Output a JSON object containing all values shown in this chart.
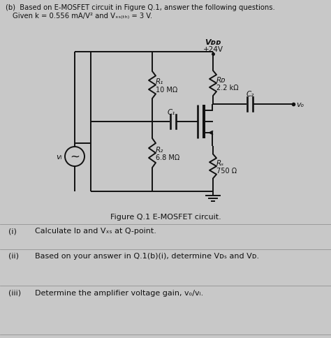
{
  "bg_color": "#c8c8c8",
  "title_line1": "(b)   Based on E-MOSFET circuit in Figure Q.1, answer the following questions.",
  "title_line2": "   Given k = 0.556 mA/V² and V₀ₛ₍ₜₕ₎ = 3 V.",
  "figure_caption": "Figure Q.1 E-MOSFET circuit.",
  "q1_num": "(i)",
  "q1_text": "Calculate Iᴅ and Vₓₛ at Q-point.",
  "q2_num": "(ii)",
  "q2_text": "Based on your answer in Q.1(b)(i), determine Vᴅₛ and Vᴅ.",
  "q3_num": "(iii)",
  "q3_text": "Determine the amplifier voltage gain, vₒ/vᵢ.",
  "text_color": "#111111",
  "vdd_label": "Vᴅᴅ",
  "vdd_value": "+24V",
  "r1_label": "R₁",
  "r1_value": "10 MΩ",
  "rd_label": "Rᴅ",
  "rd_value": "2.2 kΩ",
  "c1_label": "C₁",
  "c2_label": "C₂",
  "r2_label": "R₂",
  "r2_value": "6.8 MΩ",
  "rs_label": "Rₛ",
  "rs_value": "750 Ω",
  "vo_label": "vₒ",
  "vi_label": "vᵢ"
}
